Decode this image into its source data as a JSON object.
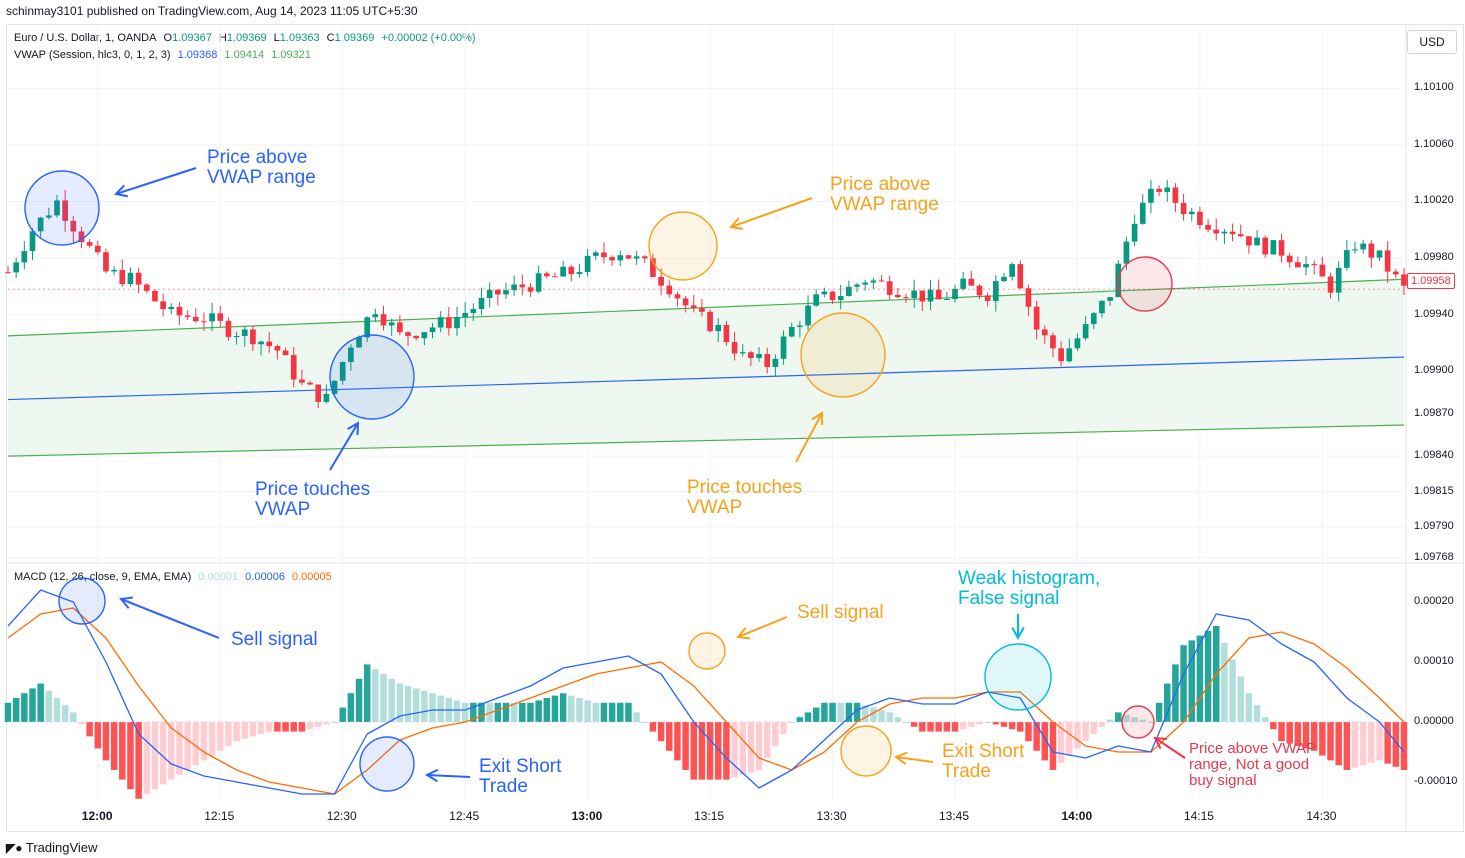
{
  "header": {
    "published": "schinmay3101 published on TradingView.com, Aug 14, 2023 11:05 UTC+5:30",
    "currency_button": "USD"
  },
  "legend": {
    "symbol": "Euro / U.S. Dollar, 1, OANDA",
    "o_label": "O",
    "o_value": "1.09367",
    "h_label": "H",
    "h_value": "1.09369",
    "l_label": "L",
    "l_value": "1.09363",
    "c_label": "C",
    "c_value": "1.09369",
    "change": "+0.00002 (+0.00%)",
    "vwap_label": "VWAP (Session, hlc3, 0, 1, 2, 3)",
    "vwap_v1": "1.09368",
    "vwap_v2": "1.09414",
    "vwap_v3": "1.09321",
    "macd_label": "MACD (12, 26, close, 9, EMA, EMA)",
    "macd_v1": "0.00001",
    "macd_v2": "0.00006",
    "macd_v3": "0.00005"
  },
  "colors": {
    "up": "#089981",
    "down": "#f23645",
    "vwap": "#2962ff",
    "band": "#4caf50",
    "band_fill": "#e8f5e9",
    "macd": "#2962ff",
    "signal": "#ff6d00",
    "hist_up_strong": "#26a69a",
    "hist_up_weak": "#b2dfdb",
    "hist_down_strong": "#ff5252",
    "hist_down_weak": "#ffcdd2",
    "ann_blue": "#2962ff",
    "ann_orange": "#f7a21b",
    "ann_cyan": "#00bcd4",
    "ann_red": "#e63950"
  },
  "price_tag": "1.09958",
  "price_axis": [
    "1.10100",
    "1.10060",
    "1.10020",
    "1.09980",
    "1.09940",
    "1.09900",
    "1.09870",
    "1.09840",
    "1.09815",
    "1.09790",
    "1.09768"
  ],
  "macd_axis": [
    "0.00020",
    "0.00010",
    "0.00000",
    "-0.00010"
  ],
  "time_axis": [
    "12:00",
    "12:15",
    "12:30",
    "12:45",
    "13:00",
    "13:15",
    "13:30",
    "13:45",
    "14:00",
    "14:15",
    "14:30"
  ],
  "annotations": {
    "a1": "Price above\nVWAP range",
    "a2": "Price above\nVWAP range",
    "a3": "Price touches\nVWAP",
    "a4": "Price touches\nVWAP",
    "a5": "Sell signal",
    "a6": "Sell signal",
    "a7": "Weak histogram,\nFalse signal",
    "a8": "Exit Short\nTrade",
    "a9": "Exit Short\nTrade",
    "a10": "Price above VWAP\nrange, Not a good\nbuy signal"
  },
  "footer": "TradingView",
  "chart_data": [
    {
      "type": "candlestick",
      "title": "Euro / U.S. Dollar, 1, OANDA",
      "x_range": [
        "11:49",
        "14:41"
      ],
      "ylim": [
        1.09768,
        1.1012
      ],
      "price_anchors": {
        "minutes": [
          0,
          3,
          6,
          9,
          12,
          15,
          18,
          20,
          24,
          27,
          30,
          33,
          36,
          39,
          42,
          45,
          48,
          51,
          54,
          57,
          60,
          63,
          66,
          69,
          72,
          75,
          78,
          81,
          84,
          87,
          90,
          93,
          96,
          99,
          102,
          105,
          108,
          111,
          114,
          117,
          120,
          123,
          126,
          129,
          132,
          135,
          138,
          141,
          144,
          147,
          150,
          153,
          156,
          159,
          162,
          165,
          168,
          171
        ],
        "close": [
          1.0997,
          1.1,
          1.1002,
          1.09995,
          1.0997,
          1.09965,
          1.0995,
          1.0994,
          1.09938,
          1.0993,
          1.09925,
          1.09915,
          1.0989,
          1.0988,
          1.0992,
          1.09945,
          1.09925,
          1.0993,
          1.09935,
          1.09945,
          1.09955,
          1.0996,
          1.09965,
          1.0997,
          1.0998,
          1.09985,
          1.09975,
          1.0996,
          1.0994,
          1.0993,
          1.0991,
          1.09905,
          1.0993,
          1.0995,
          1.09955,
          1.09965,
          1.0996,
          1.09955,
          1.0995,
          1.0996,
          1.09955,
          1.0998,
          1.0993,
          1.0991,
          1.0993,
          1.09955,
          1.1001,
          1.1003,
          1.10015,
          1.10005,
          1.1,
          1.0999,
          1.09985,
          1.09975,
          1.0996,
          1.0999,
          1.0998,
          1.09958
        ]
      },
      "vwap": {
        "minutes": [
          0,
          171
        ],
        "values": [
          1.0988,
          1.0991
        ]
      },
      "upper_band": {
        "minutes": [
          0,
          171
        ],
        "values": [
          1.09925,
          1.09965
        ]
      },
      "lower_band": {
        "minutes": [
          0,
          171
        ],
        "values": [
          1.0984,
          1.09862
        ]
      }
    },
    {
      "type": "line",
      "title": "MACD (12, 26, close, 9, EMA, EMA)",
      "ylim": [
        -0.00013,
        0.00026
      ],
      "series": [
        {
          "name": "MACD",
          "minutes": [
            0,
            4,
            8,
            12,
            16,
            20,
            24,
            28,
            32,
            36,
            40,
            44,
            48,
            52,
            56,
            60,
            64,
            68,
            72,
            76,
            80,
            84,
            88,
            92,
            96,
            100,
            104,
            108,
            112,
            116,
            120,
            124,
            128,
            132,
            136,
            140,
            144,
            148,
            152,
            156,
            160,
            164,
            168,
            171
          ],
          "values": [
            0.00016,
            0.00022,
            0.0002,
            0.0001,
            -2e-05,
            -7e-05,
            -9e-05,
            -0.0001,
            -0.00011,
            -0.00012,
            -0.00012,
            -2e-05,
            1e-05,
            2e-05,
            2e-05,
            4e-05,
            6e-05,
            9e-05,
            0.0001,
            0.00011,
            8e-05,
            0.0,
            -6e-05,
            -0.00011,
            -8e-05,
            -3e-05,
            2e-05,
            4e-05,
            3e-05,
            3e-05,
            5e-05,
            4e-05,
            -5e-05,
            -6e-05,
            -4e-05,
            -5e-05,
            8e-05,
            0.00018,
            0.00017,
            0.00013,
            0.0001,
            4e-05,
            0.0,
            -5e-05
          ]
        },
        {
          "name": "Signal",
          "minutes": [
            0,
            4,
            8,
            12,
            16,
            20,
            24,
            28,
            32,
            36,
            40,
            44,
            48,
            52,
            56,
            60,
            64,
            68,
            72,
            76,
            80,
            84,
            88,
            92,
            96,
            100,
            104,
            108,
            112,
            116,
            120,
            124,
            128,
            132,
            136,
            140,
            144,
            148,
            152,
            156,
            160,
            164,
            168,
            171
          ],
          "values": [
            0.00014,
            0.00018,
            0.00019,
            0.00014,
            6e-05,
            -1e-05,
            -5e-05,
            -8e-05,
            -0.0001,
            -0.00011,
            -0.00012,
            -8e-05,
            -3e-05,
            -1e-05,
            0.0,
            2e-05,
            4e-05,
            6e-05,
            8e-05,
            9e-05,
            0.0001,
            6e-05,
            0.0,
            -6e-05,
            -8e-05,
            -5e-05,
            0.0,
            3e-05,
            4e-05,
            4e-05,
            5e-05,
            5e-05,
            0.0,
            -4e-05,
            -5e-05,
            -5e-05,
            0.0,
            8e-05,
            0.00014,
            0.00015,
            0.00013,
            9e-05,
            4e-05,
            0.0
          ]
        }
      ]
    }
  ]
}
